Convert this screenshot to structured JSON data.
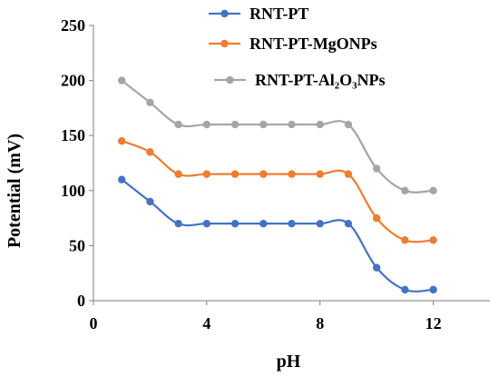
{
  "chart_data": {
    "type": "line",
    "xlabel": "pH",
    "ylabel": "Potential (mV)",
    "xlim": [
      0,
      14
    ],
    "ylim": [
      0,
      250
    ],
    "xticks": [
      0,
      4,
      8,
      12
    ],
    "yticks": [
      0,
      50,
      100,
      150,
      200,
      250
    ],
    "grid": false,
    "legend_position": "top-right",
    "smooth": true,
    "series": [
      {
        "name": "RNT-PT",
        "color": "#4472c4",
        "x": [
          1,
          2,
          3,
          4,
          5,
          6,
          7,
          8,
          9,
          10,
          11,
          12
        ],
        "y": [
          110,
          90,
          70,
          70,
          70,
          70,
          70,
          70,
          70,
          30,
          10,
          10
        ]
      },
      {
        "name": "RNT-PT-MgONPs",
        "color": "#ed7d31",
        "x": [
          1,
          2,
          3,
          4,
          5,
          6,
          7,
          8,
          9,
          10,
          11,
          12
        ],
        "y": [
          145,
          135,
          115,
          115,
          115,
          115,
          115,
          115,
          115,
          75,
          55,
          55
        ]
      },
      {
        "name": "RNT-PT-Al₂O₃NPs",
        "color": "#a5a5a5",
        "x": [
          1,
          2,
          3,
          4,
          5,
          6,
          7,
          8,
          9,
          10,
          11,
          12
        ],
        "y": [
          200,
          180,
          160,
          160,
          160,
          160,
          160,
          160,
          160,
          120,
          100,
          100
        ]
      }
    ]
  }
}
